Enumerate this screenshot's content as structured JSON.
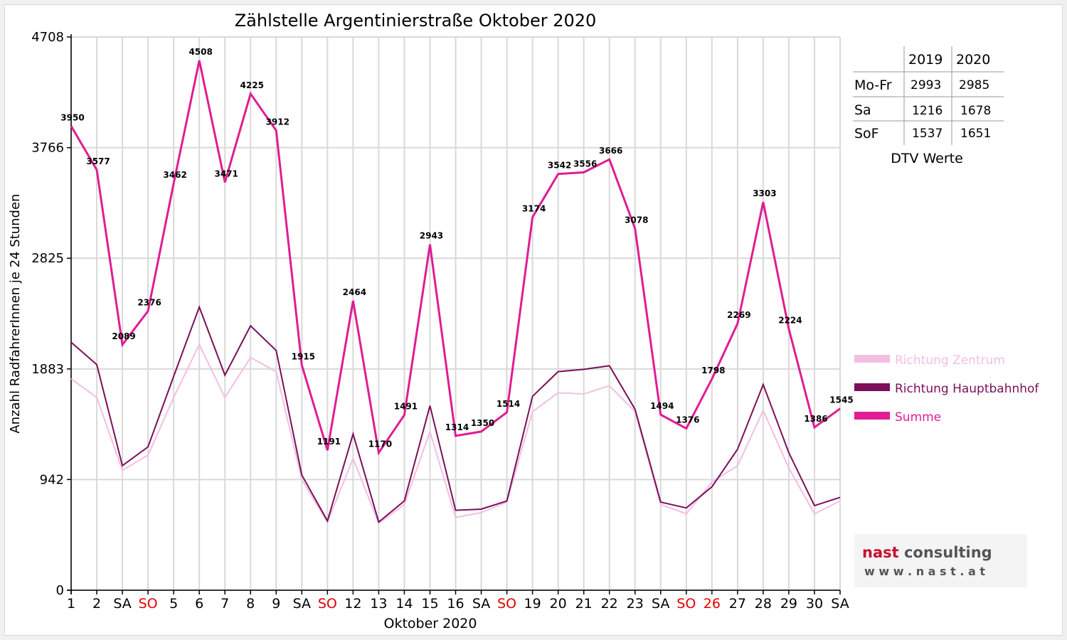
{
  "chart_data": {
    "type": "line",
    "title": "Zählstelle Argentinierstraße Oktober 2020",
    "xlabel": "Oktober 2020",
    "ylabel": "Anzahl RadfahrerInnen je 24 Stunden",
    "ylim": [
      0,
      4708
    ],
    "yticks": [
      "0",
      "942",
      "1883",
      "2825",
      "3766",
      "4708"
    ],
    "yticks_values": [
      0,
      942,
      1883,
      2825,
      3766,
      4708
    ],
    "categories": [
      "1",
      "2",
      "SA",
      "SO",
      "5",
      "6",
      "7",
      "8",
      "9",
      "SA",
      "SO",
      "12",
      "13",
      "14",
      "15",
      "16",
      "SA",
      "SO",
      "19",
      "20",
      "21",
      "22",
      "23",
      "SA",
      "SO",
      "26",
      "27",
      "28",
      "29",
      "30",
      "SA"
    ],
    "red_categories": [
      3,
      10,
      17,
      24,
      25
    ],
    "grid": true,
    "legend_position": "right",
    "series": [
      {
        "name": "Richtung Zentrum",
        "color": "#f2bfe0",
        "values": [
          1800,
          1640,
          1020,
          1150,
          1640,
          2090,
          1640,
          1980,
          1860,
          940,
          580,
          1120,
          570,
          730,
          1350,
          620,
          660,
          750,
          1520,
          1680,
          1670,
          1740,
          1520,
          730,
          650,
          920,
          1060,
          1530,
          1040,
          650,
          760
        ]
      },
      {
        "name": "Richtung Hauptbahnhof",
        "color": "#7b0f5a",
        "values": [
          2110,
          1920,
          1060,
          1220,
          1820,
          2410,
          1830,
          2250,
          2040,
          980,
          590,
          1330,
          580,
          760,
          1570,
          680,
          690,
          760,
          1650,
          1860,
          1880,
          1910,
          1540,
          750,
          700,
          880,
          1200,
          1750,
          1170,
          720,
          790
        ]
      },
      {
        "name": "Summe",
        "color": "#e01d92",
        "values": [
          3950,
          3577,
          2089,
          2376,
          3462,
          4508,
          3471,
          4225,
          3912,
          1915,
          1191,
          2464,
          1170,
          1491,
          2943,
          1314,
          1350,
          1514,
          3174,
          3542,
          3556,
          3666,
          3078,
          1494,
          1376,
          1798,
          2269,
          3303,
          2224,
          1386,
          1545
        ]
      }
    ],
    "data_labels": [
      "3950",
      "3577",
      "2089",
      "2376",
      "3462",
      "4508",
      "3471",
      "4225",
      "3912",
      "1915",
      "1191",
      "2464",
      "1170",
      "1491",
      "2943",
      "1314",
      "1350",
      "1514",
      "3174",
      "3542",
      "3556",
      "3666",
      "3078",
      "1494",
      "1376",
      "1798",
      "2269",
      "3303",
      "2224",
      "1386",
      "1545"
    ]
  },
  "dtv_table": {
    "years": [
      "2019",
      "2020"
    ],
    "rows": [
      {
        "label": "Mo-Fr",
        "v2019": "2993",
        "v2020": "2985"
      },
      {
        "label": "Sa",
        "v2019": "1216",
        "v2020": "1678"
      },
      {
        "label": "SoF",
        "v2019": "1537",
        "v2020": "1651"
      }
    ],
    "caption": "DTV Werte"
  },
  "logo": {
    "text_nast": "nast",
    "text_consulting": " consulting",
    "url_text": "w w w . n a s t . a t",
    "color_nast": "#c8102e",
    "color_consulting": "#555555"
  }
}
